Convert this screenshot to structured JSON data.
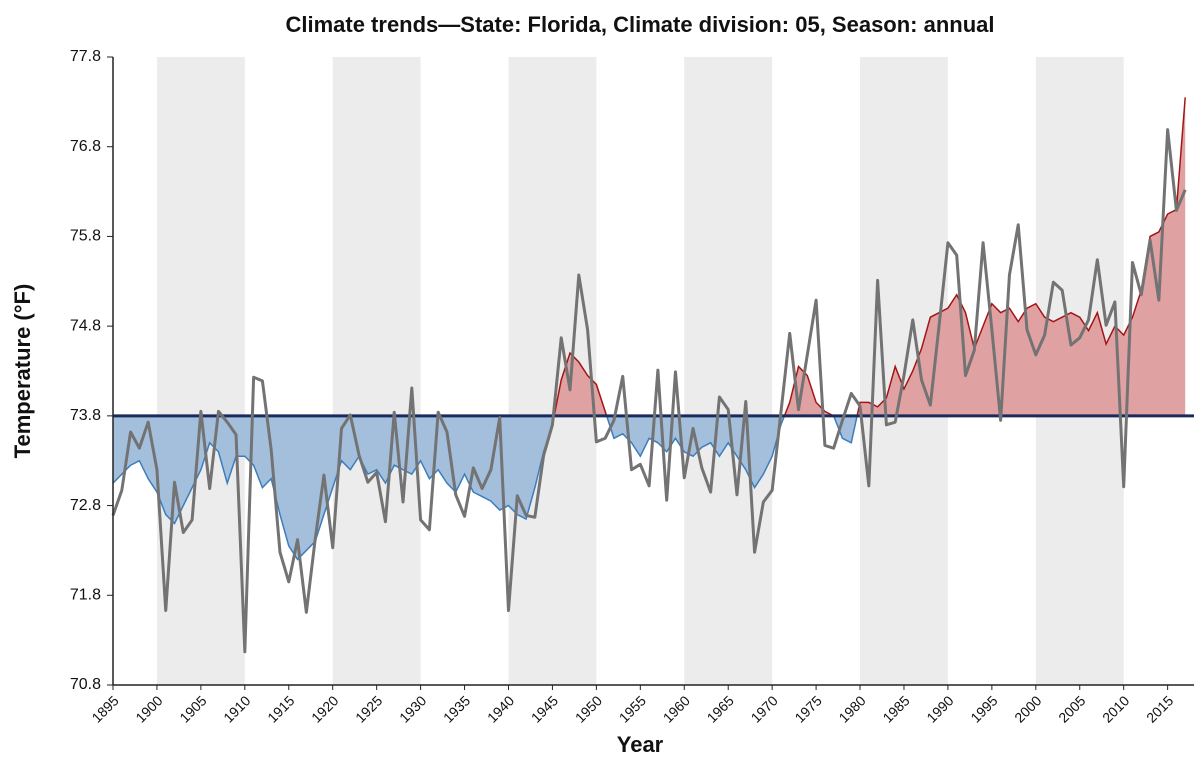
{
  "chart_data": {
    "type": "line",
    "title": "Climate trends—State: Florida, Climate division: 05, Season: annual",
    "x_label": "Year",
    "y_label": "Temperature (°F)",
    "xlim": [
      1895,
      2018
    ],
    "ylim": [
      70.8,
      77.8
    ],
    "xticks": [
      1895,
      1900,
      1905,
      1910,
      1915,
      1920,
      1925,
      1930,
      1935,
      1940,
      1945,
      1950,
      1955,
      1960,
      1965,
      1970,
      1975,
      1980,
      1985,
      1990,
      1995,
      2000,
      2005,
      2010,
      2015
    ],
    "yticks": [
      70.8,
      71.8,
      72.8,
      73.8,
      74.8,
      75.8,
      76.8,
      77.8
    ],
    "bands": [
      [
        1900,
        1910
      ],
      [
        1920,
        1930
      ],
      [
        1940,
        1950
      ],
      [
        1960,
        1970
      ],
      [
        1980,
        1990
      ],
      [
        2000,
        2010
      ]
    ],
    "band_color": "#ececec",
    "baseline": 73.8,
    "baseline_color": "#1b2a5c",
    "x": [
      1895,
      1896,
      1897,
      1898,
      1899,
      1900,
      1901,
      1902,
      1903,
      1904,
      1905,
      1906,
      1907,
      1908,
      1909,
      1910,
      1911,
      1912,
      1913,
      1914,
      1915,
      1916,
      1917,
      1918,
      1919,
      1920,
      1921,
      1922,
      1923,
      1924,
      1925,
      1926,
      1927,
      1928,
      1929,
      1930,
      1931,
      1932,
      1933,
      1934,
      1935,
      1936,
      1937,
      1938,
      1939,
      1940,
      1941,
      1942,
      1943,
      1944,
      1945,
      1946,
      1947,
      1948,
      1949,
      1950,
      1951,
      1952,
      1953,
      1954,
      1955,
      1956,
      1957,
      1958,
      1959,
      1960,
      1961,
      1962,
      1963,
      1964,
      1965,
      1966,
      1967,
      1968,
      1969,
      1970,
      1971,
      1972,
      1973,
      1974,
      1975,
      1976,
      1977,
      1978,
      1979,
      1980,
      1981,
      1982,
      1983,
      1984,
      1985,
      1986,
      1987,
      1988,
      1989,
      1990,
      1991,
      1992,
      1993,
      1994,
      1995,
      1996,
      1997,
      1998,
      1999,
      2000,
      2001,
      2002,
      2003,
      2004,
      2005,
      2006,
      2007,
      2008,
      2009,
      2010,
      2011,
      2012,
      2013,
      2014,
      2015,
      2016,
      2017
    ],
    "series": [
      {
        "color": "#737373",
        "values": [
          72.69,
          72.97,
          73.62,
          73.44,
          73.73,
          73.2,
          71.63,
          73.06,
          72.5,
          72.64,
          73.85,
          72.99,
          73.85,
          73.73,
          73.59,
          71.17,
          74.23,
          74.19,
          73.42,
          72.28,
          71.95,
          72.42,
          71.61,
          72.42,
          73.14,
          72.33,
          73.66,
          73.81,
          73.36,
          73.06,
          73.17,
          72.62,
          73.84,
          72.84,
          74.11,
          72.64,
          72.53,
          73.84,
          73.62,
          72.92,
          72.68,
          73.22,
          72.99,
          73.2,
          73.78,
          71.63,
          72.91,
          72.69,
          72.67,
          73.36,
          73.7,
          74.67,
          74.09,
          75.37,
          74.76,
          73.51,
          73.55,
          73.75,
          74.24,
          73.2,
          73.26,
          73.02,
          74.31,
          72.86,
          74.29,
          73.11,
          73.66,
          73.22,
          72.95,
          74.01,
          73.87,
          72.92,
          73.96,
          72.28,
          72.84,
          72.97,
          73.84,
          74.72,
          73.87,
          74.48,
          75.09,
          73.47,
          73.44,
          73.75,
          74.05,
          73.91,
          73.02,
          75.31,
          73.7,
          73.73,
          74.25,
          74.87,
          74.2,
          73.92,
          74.81,
          75.73,
          75.59,
          74.25,
          74.53,
          75.73,
          74.76,
          73.75,
          75.37,
          75.93,
          74.76,
          74.48,
          74.7,
          75.29,
          75.2,
          74.59,
          74.67,
          74.87,
          75.54,
          74.81,
          75.07,
          73.01,
          75.51,
          75.15,
          75.76,
          75.09,
          76.99,
          76.09,
          76.32
        ]
      },
      {
        "color_above": "#a31515",
        "color_below": "#3b7dbd",
        "fill_above": "#e0a1a3",
        "fill_below": "#a3bfdc",
        "values": [
          73.05,
          73.15,
          73.25,
          73.3,
          73.1,
          72.95,
          72.7,
          72.6,
          72.8,
          73.0,
          73.2,
          73.5,
          73.4,
          73.05,
          73.35,
          73.35,
          73.25,
          73.0,
          73.1,
          72.7,
          72.35,
          72.2,
          72.3,
          72.4,
          72.7,
          73.0,
          73.3,
          73.2,
          73.35,
          73.15,
          73.2,
          73.05,
          73.25,
          73.2,
          73.15,
          73.3,
          73.1,
          73.2,
          73.05,
          72.95,
          73.15,
          72.95,
          72.9,
          72.85,
          72.75,
          72.8,
          72.7,
          72.65,
          73.0,
          73.4,
          73.7,
          74.2,
          74.5,
          74.4,
          74.25,
          74.15,
          73.85,
          73.55,
          73.6,
          73.5,
          73.35,
          73.55,
          73.5,
          73.4,
          73.55,
          73.4,
          73.35,
          73.45,
          73.5,
          73.35,
          73.5,
          73.35,
          73.2,
          73.0,
          73.15,
          73.35,
          73.7,
          73.95,
          74.35,
          74.25,
          73.95,
          73.85,
          73.8,
          73.55,
          73.5,
          73.95,
          73.95,
          73.9,
          74.0,
          74.35,
          74.1,
          74.3,
          74.55,
          74.9,
          74.95,
          75.0,
          75.15,
          74.95,
          74.55,
          74.8,
          75.05,
          74.95,
          75.0,
          74.85,
          75.0,
          75.05,
          74.9,
          74.85,
          74.9,
          74.95,
          74.9,
          74.75,
          74.95,
          74.6,
          74.8,
          74.7,
          74.9,
          75.2,
          75.8,
          75.85,
          76.05,
          76.1,
          77.35
        ]
      }
    ]
  }
}
